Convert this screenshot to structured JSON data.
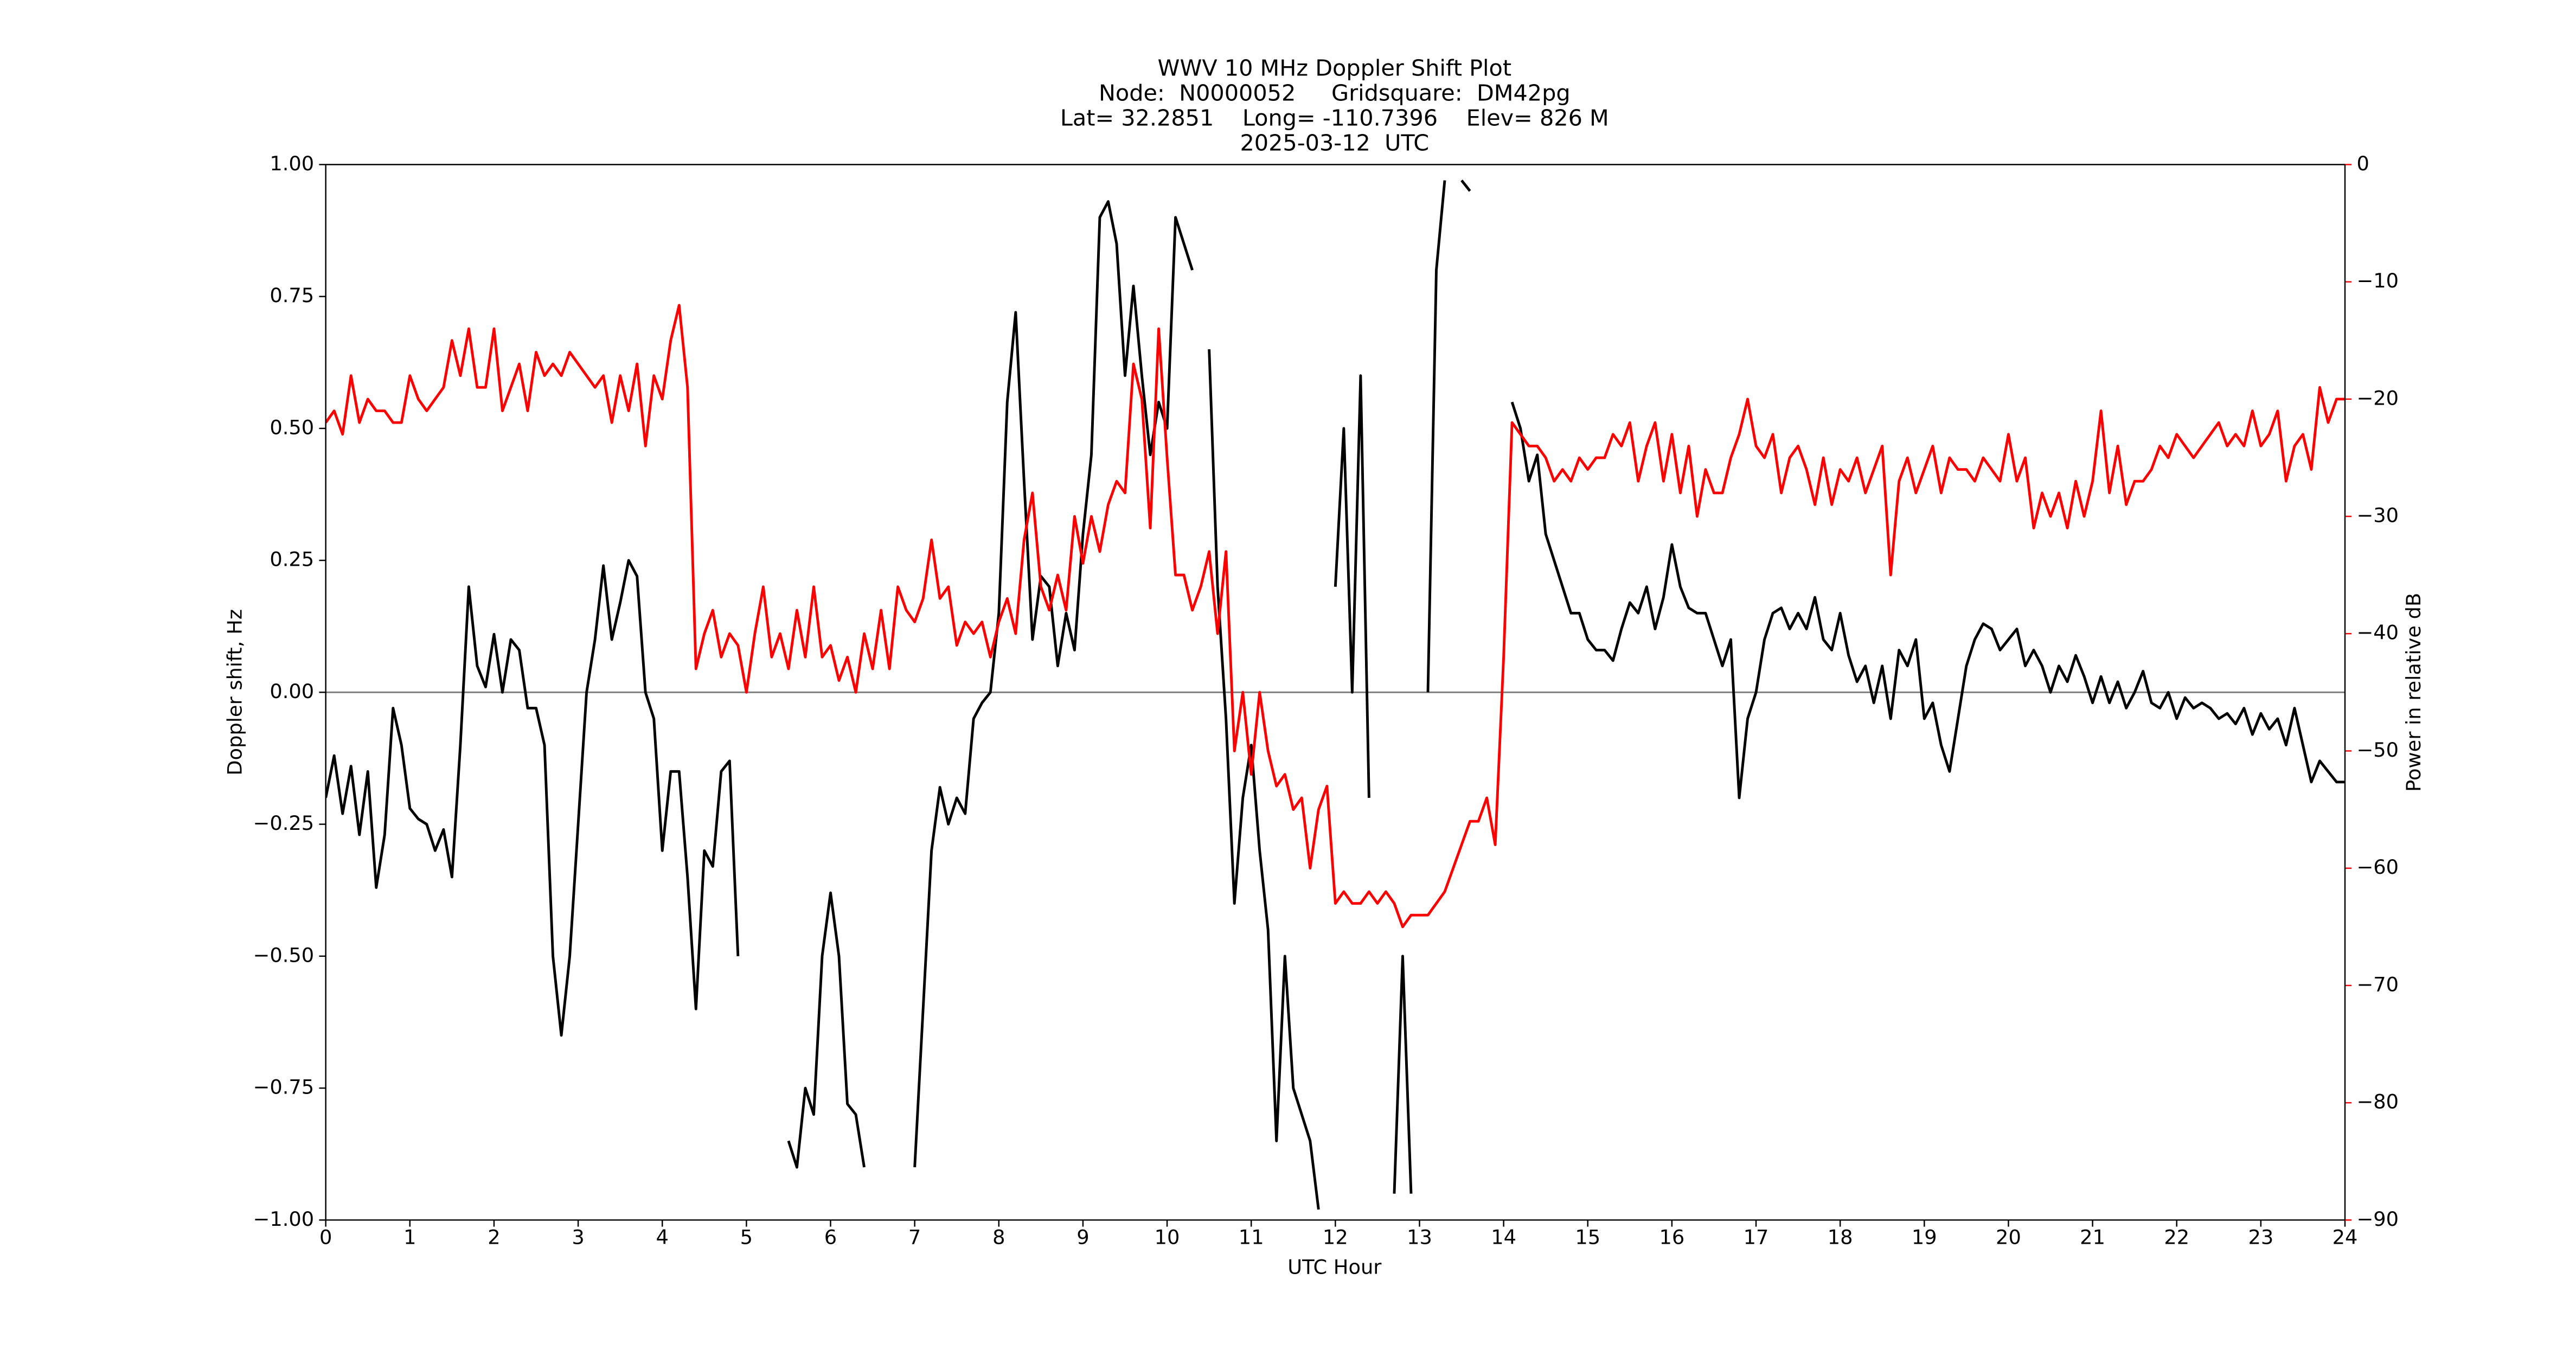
{
  "chart_data": {
    "type": "line",
    "title": "WWV 10 MHz Doppler Shift Plot",
    "subtitle": [
      "Node:  N0000052     Gridsquare:  DM42pg",
      "Lat= 32.2851    Long= -110.7396    Elev= 826 M",
      "2025-03-12  UTC"
    ],
    "xlabel": "UTC Hour",
    "ylabel": "Doppler shift, Hz",
    "y2label": "Power in relative dB",
    "x": [
      0,
      0.1,
      0.2,
      0.3,
      0.4,
      0.5,
      0.6,
      0.7,
      0.8,
      0.9,
      1,
      1.1,
      1.2,
      1.3,
      1.4,
      1.5,
      1.6,
      1.7,
      1.8,
      1.9,
      2,
      2.1,
      2.2,
      2.3,
      2.4,
      2.5,
      2.6,
      2.7,
      2.8,
      2.9,
      3,
      3.1,
      3.2,
      3.3,
      3.4,
      3.5,
      3.6,
      3.7,
      3.8,
      3.9,
      4,
      4.1,
      4.2,
      4.3,
      4.4,
      4.5,
      4.6,
      4.7,
      4.8,
      4.9,
      5,
      5.1,
      5.2,
      5.3,
      5.4,
      5.5,
      5.6,
      5.7,
      5.8,
      5.9,
      6,
      6.1,
      6.2,
      6.3,
      6.4,
      6.5,
      6.6,
      6.7,
      6.8,
      6.9,
      7,
      7.1,
      7.2,
      7.3,
      7.4,
      7.5,
      7.6,
      7.7,
      7.8,
      7.9,
      8,
      8.1,
      8.2,
      8.3,
      8.4,
      8.5,
      8.6,
      8.7,
      8.8,
      8.9,
      9,
      9.1,
      9.2,
      9.3,
      9.4,
      9.5,
      9.6,
      9.7,
      9.8,
      9.9,
      10,
      10.1,
      10.2,
      10.3,
      10.4,
      10.5,
      10.6,
      10.7,
      10.8,
      10.9,
      11,
      11.1,
      11.2,
      11.3,
      11.4,
      11.5,
      11.6,
      11.7,
      11.8,
      11.9,
      12,
      12.1,
      12.2,
      12.3,
      12.4,
      12.5,
      12.6,
      12.7,
      12.8,
      12.9,
      13,
      13.1,
      13.2,
      13.3,
      13.4,
      13.5,
      13.6,
      13.7,
      13.8,
      13.9,
      14,
      14.1,
      14.2,
      14.3,
      14.4,
      14.5,
      14.6,
      14.7,
      14.8,
      14.9,
      15,
      15.1,
      15.2,
      15.3,
      15.4,
      15.5,
      15.6,
      15.7,
      15.8,
      15.9,
      16,
      16.1,
      16.2,
      16.3,
      16.4,
      16.5,
      16.6,
      16.7,
      16.8,
      16.9,
      17,
      17.1,
      17.2,
      17.3,
      17.4,
      17.5,
      17.6,
      17.7,
      17.8,
      17.9,
      18,
      18.1,
      18.2,
      18.3,
      18.4,
      18.5,
      18.6,
      18.7,
      18.8,
      18.9,
      19,
      19.1,
      19.2,
      19.3,
      19.4,
      19.5,
      19.6,
      19.7,
      19.8,
      19.9,
      20,
      20.1,
      20.2,
      20.3,
      20.4,
      20.5,
      20.6,
      20.7,
      20.8,
      20.9,
      21,
      21.1,
      21.2,
      21.3,
      21.4,
      21.5,
      21.6,
      21.7,
      21.8,
      21.9,
      22,
      22.1,
      22.2,
      22.3,
      22.4,
      22.5,
      22.6,
      22.7,
      22.8,
      22.9,
      23,
      23.1,
      23.2,
      23.3,
      23.4,
      23.5,
      23.6,
      23.7,
      23.8,
      23.9,
      24
    ],
    "series": [
      {
        "name": "Doppler shift",
        "color": "#000000",
        "values": [
          -0.2,
          -0.12,
          -0.23,
          -0.14,
          -0.27,
          -0.15,
          -0.37,
          -0.27,
          -0.03,
          -0.1,
          -0.22,
          -0.24,
          -0.25,
          -0.3,
          -0.26,
          -0.35,
          -0.1,
          0.2,
          0.05,
          0.01,
          0.11,
          0.0,
          0.1,
          0.08,
          -0.03,
          -0.03,
          -0.1,
          -0.5,
          -0.65,
          -0.5,
          -0.25,
          0.0,
          0.1,
          0.24,
          0.1,
          0.17,
          0.25,
          0.22,
          0.0,
          -0.05,
          -0.3,
          -0.15,
          -0.15,
          -0.35,
          -0.6,
          -0.3,
          -0.33,
          -0.15,
          -0.13,
          -0.5,
          null,
          null,
          null,
          null,
          null,
          -0.85,
          -0.9,
          -0.75,
          -0.8,
          -0.5,
          -0.38,
          -0.5,
          -0.78,
          -0.8,
          -0.9,
          null,
          null,
          null,
          null,
          null,
          -0.9,
          -0.6,
          -0.3,
          -0.18,
          -0.25,
          -0.2,
          -0.23,
          -0.05,
          -0.02,
          0.0,
          0.15,
          0.55,
          0.72,
          0.4,
          0.1,
          0.22,
          0.2,
          0.05,
          0.15,
          0.08,
          0.3,
          0.45,
          0.9,
          0.93,
          0.85,
          0.6,
          0.77,
          0.6,
          0.45,
          0.55,
          0.5,
          0.9,
          0.85,
          0.8,
          null,
          0.65,
          0.2,
          -0.05,
          -0.4,
          -0.2,
          -0.1,
          -0.3,
          -0.45,
          -0.85,
          -0.5,
          -0.75,
          -0.8,
          -0.85,
          -0.98,
          null,
          0.2,
          0.5,
          0.0,
          0.6,
          -0.2,
          null,
          null,
          -0.95,
          -0.5,
          -0.95,
          null,
          0.0,
          0.8,
          0.97,
          null,
          0.97,
          0.95,
          null,
          null,
          null,
          null,
          0.55,
          0.5,
          0.4,
          0.45,
          0.3,
          0.25,
          0.2,
          0.15,
          0.15,
          0.1,
          0.08,
          0.08,
          0.06,
          0.12,
          0.17,
          0.15,
          0.2,
          0.12,
          0.18,
          0.28,
          0.2,
          0.16,
          0.15,
          0.15,
          0.1,
          0.05,
          0.1,
          -0.2,
          -0.05,
          0.0,
          0.1,
          0.15,
          0.16,
          0.12,
          0.15,
          0.12,
          0.18,
          0.1,
          0.08,
          0.15,
          0.07,
          0.02,
          0.05,
          -0.02,
          0.05,
          -0.05,
          0.08,
          0.05,
          0.1,
          -0.05,
          -0.02,
          -0.1,
          -0.15,
          -0.05,
          0.05,
          0.1,
          0.13,
          0.12,
          0.08,
          0.1,
          0.12,
          0.05,
          0.08,
          0.05,
          0.0,
          0.05,
          0.02,
          0.07,
          0.03,
          -0.02,
          0.03,
          -0.02,
          0.02,
          -0.03,
          0.0,
          0.04,
          -0.02,
          -0.03,
          0.0,
          -0.05,
          -0.01,
          -0.03,
          -0.02,
          -0.03,
          -0.05,
          -0.04,
          -0.06,
          -0.03,
          -0.08,
          -0.04,
          -0.07,
          -0.05,
          -0.1,
          -0.03,
          -0.1,
          -0.17,
          -0.13,
          -0.15,
          -0.17,
          -0.17
        ]
      },
      {
        "name": "Power",
        "color": "#ff0000",
        "axis": "y2",
        "values": [
          -22,
          -21,
          -23,
          -18,
          -22,
          -20,
          -21,
          -21,
          -22,
          -22,
          -18,
          -20,
          -21,
          -20,
          -19,
          -15,
          -18,
          -14,
          -19,
          -19,
          -14,
          -21,
          -19,
          -17,
          -21,
          -16,
          -18,
          -17,
          -18,
          -16,
          -17,
          -18,
          -19,
          -18,
          -22,
          -18,
          -21,
          -17,
          -24,
          -18,
          -20,
          -15,
          -12,
          -19,
          -43,
          -40,
          -38,
          -42,
          -40,
          -41,
          -45,
          -40,
          -36,
          -42,
          -40,
          -43,
          -38,
          -42,
          -36,
          -42,
          -41,
          -44,
          -42,
          -45,
          -40,
          -43,
          -38,
          -43,
          -36,
          -38,
          -39,
          -37,
          -32,
          -37,
          -36,
          -41,
          -39,
          -40,
          -39,
          -42,
          -39,
          -37,
          -40,
          -32,
          -28,
          -36,
          -38,
          -35,
          -38,
          -30,
          -34,
          -30,
          -33,
          -29,
          -27,
          -28,
          -17,
          -20,
          -31,
          -14,
          -25,
          -35,
          -35,
          -38,
          -36,
          -33,
          -40,
          -33,
          -50,
          -45,
          -52,
          -45,
          -50,
          -53,
          -52,
          -55,
          -54,
          -60,
          -55,
          -53,
          -63,
          -62,
          -63,
          -63,
          -62,
          -63,
          -62,
          -63,
          -65,
          -64,
          -64,
          -64,
          -63,
          -62,
          -60,
          -58,
          -56,
          -56,
          -54,
          -58,
          -42,
          -22,
          -23,
          -24,
          -24,
          -25,
          -27,
          -26,
          -27,
          -25,
          -26,
          -25,
          -25,
          -23,
          -24,
          -22,
          -27,
          -24,
          -22,
          -27,
          -23,
          -28,
          -24,
          -30,
          -26,
          -28,
          -28,
          -25,
          -23,
          -20,
          -24,
          -25,
          -23,
          -28,
          -25,
          -24,
          -26,
          -29,
          -25,
          -29,
          -26,
          -27,
          -25,
          -28,
          -26,
          -24,
          -35,
          -27,
          -25,
          -28,
          -26,
          -24,
          -28,
          -25,
          -26,
          -26,
          -27,
          -25,
          -26,
          -27,
          -23,
          -27,
          -25,
          -31,
          -28,
          -30,
          -28,
          -31,
          -27,
          -30,
          -27,
          -21,
          -28,
          -24,
          -29,
          -27,
          -27,
          -26,
          -24,
          -25,
          -23,
          -24,
          -25,
          -24,
          -23,
          -22,
          -24,
          -23,
          -24,
          -21,
          -24,
          -23,
          -21,
          -27,
          -24,
          -23,
          -26,
          -19,
          -22,
          -20,
          -20
        ]
      }
    ],
    "xlim": [
      0,
      24
    ],
    "xticks": [
      0,
      1,
      2,
      3,
      4,
      5,
      6,
      7,
      8,
      9,
      10,
      11,
      12,
      13,
      14,
      15,
      16,
      17,
      18,
      19,
      20,
      21,
      22,
      23,
      24
    ],
    "ylim": [
      -1,
      1
    ],
    "yticks": [
      {
        "value": -1,
        "label": "−1.00"
      },
      {
        "value": -0.75,
        "label": "−0.75"
      },
      {
        "value": -0.5,
        "label": "−0.50"
      },
      {
        "value": -0.25,
        "label": "−0.25"
      },
      {
        "value": 0,
        "label": "0.00"
      },
      {
        "value": 0.25,
        "label": "0.25"
      },
      {
        "value": 0.5,
        "label": "0.50"
      },
      {
        "value": 0.75,
        "label": "0.75"
      },
      {
        "value": 1,
        "label": "1.00"
      }
    ],
    "y2lim": [
      -90,
      0
    ],
    "y2ticks": [
      {
        "value": -90,
        "label": "−90"
      },
      {
        "value": -80,
        "label": "−80"
      },
      {
        "value": -70,
        "label": "−70"
      },
      {
        "value": -60,
        "label": "−60"
      },
      {
        "value": -50,
        "label": "−50"
      },
      {
        "value": -40,
        "label": "−40"
      },
      {
        "value": -30,
        "label": "−30"
      },
      {
        "value": -20,
        "label": "−20"
      },
      {
        "value": -10,
        "label": "−10"
      },
      0
    ],
    "y2color": "#ff0000",
    "hline": 0,
    "hline_color": "#808080"
  }
}
